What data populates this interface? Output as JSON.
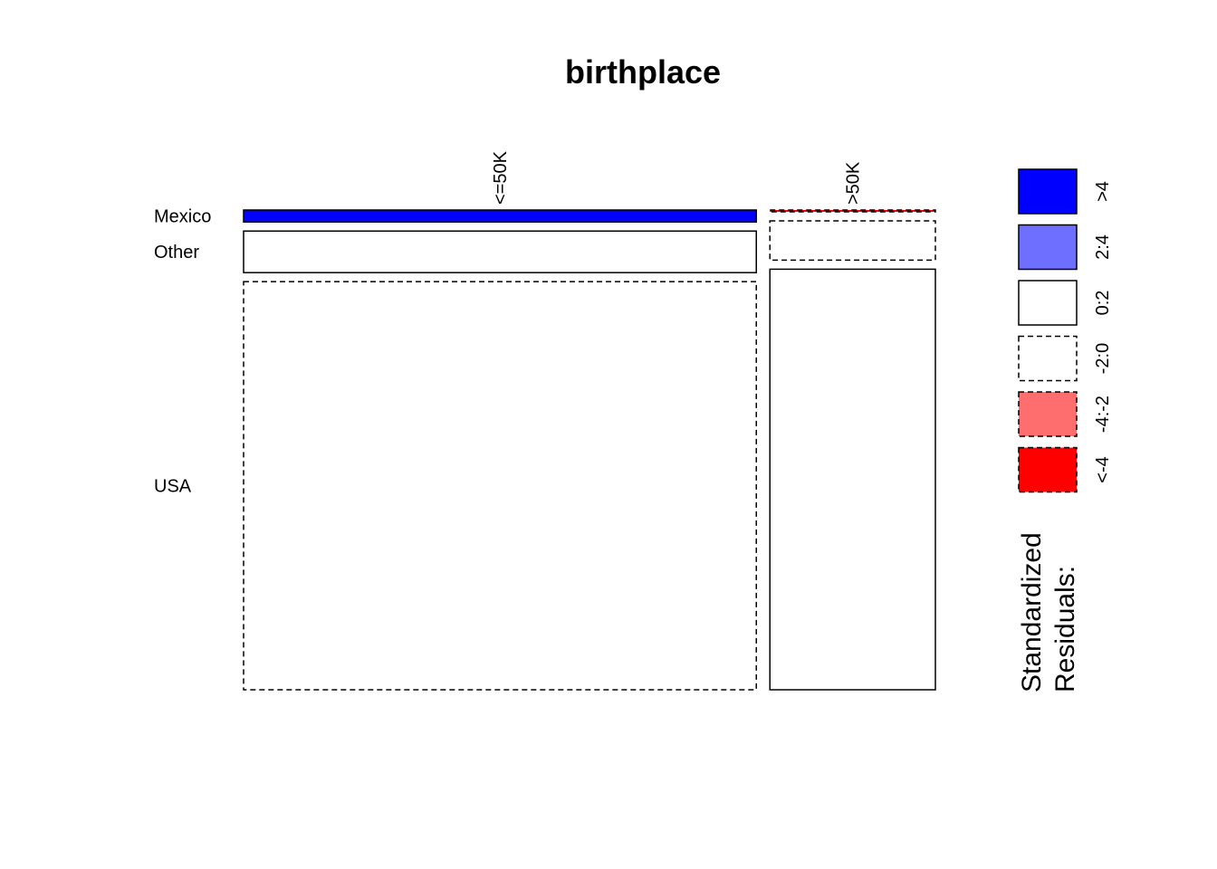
{
  "chart_data": {
    "type": "mosaic",
    "title": "birthplace",
    "columns": [
      "<=50K",
      ">50K"
    ],
    "column_proportions": [
      0.756,
      0.244
    ],
    "rows": [
      "Mexico",
      "Other",
      "USA"
    ],
    "cells": [
      {
        "column": "<=50K",
        "row": "Mexico",
        "proportion": 0.026,
        "residual_class": ">4"
      },
      {
        "column": "<=50K",
        "row": "Other",
        "proportion": 0.09,
        "residual_class": "0:2"
      },
      {
        "column": "<=50K",
        "row": "USA",
        "proportion": 0.884,
        "residual_class": "-2:0"
      },
      {
        "column": ">50K",
        "row": "Mexico",
        "proportion": 0.004,
        "residual_class": "<-4"
      },
      {
        "column": ">50K",
        "row": "Other",
        "proportion": 0.085,
        "residual_class": "-2:0"
      },
      {
        "column": ">50K",
        "row": "USA",
        "proportion": 0.911,
        "residual_class": "0:2"
      }
    ],
    "legend": {
      "title": "Standardized Residuals:",
      "title_lines": [
        "Standardized",
        "Residuals:"
      ],
      "placement": "right",
      "entries": [
        {
          "label": ">4",
          "color": "#0000ff",
          "dashed": false
        },
        {
          "label": "2:4",
          "color": "#6e6eff",
          "dashed": false
        },
        {
          "label": "0:2",
          "color": "#ffffff",
          "dashed": false
        },
        {
          "label": "-2:0",
          "color": "#ffffff",
          "dashed": true
        },
        {
          "label": "-4:-2",
          "color": "#ff6e6e",
          "dashed": true
        },
        {
          "label": "<-4",
          "color": "#ff0000",
          "dashed": true
        }
      ]
    }
  }
}
